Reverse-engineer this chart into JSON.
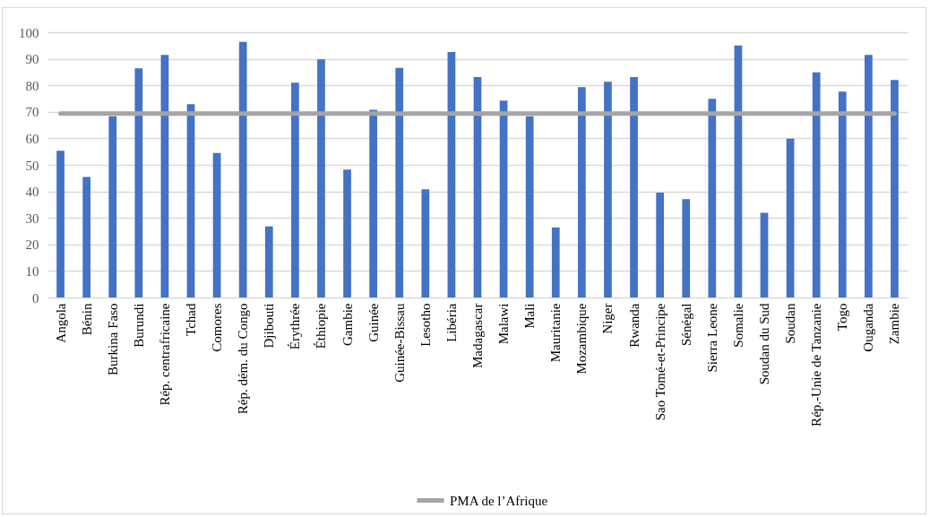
{
  "chart_data": {
    "type": "bar",
    "categories": [
      "Angola",
      "Bénin",
      "Burkina Faso",
      "Burundi",
      "Rép. centrafricaine",
      "Tchad",
      "Comores",
      "Rép. dém. du Congo",
      "Djibouti",
      "Érythrée",
      "Éthiopie",
      "Gambie",
      "Guinée",
      "Guinée-Bissau",
      "Lesotho",
      "Libéria",
      "Madagascar",
      "Malawi",
      "Mali",
      "Mauritanie",
      "Mozambique",
      "Niger",
      "Rwanda",
      "Sao Tomé-et-Principe",
      "Sénégal",
      "Sierra Leone",
      "Somalie",
      "Soudan du Sud",
      "Soudan",
      "Rép.-Unie de Tanzanie",
      "Togo",
      "Ouganda",
      "Zambie"
    ],
    "series": [
      {
        "color": "#4472c4",
        "values": [
          55.3,
          45.4,
          68.3,
          86.4,
          91.5,
          72.9,
          54.5,
          96.4,
          26.8,
          81.0,
          89.8,
          48.2,
          70.8,
          86.6,
          40.8,
          92.6,
          83.1,
          74.2,
          68.3,
          26.4,
          79.3,
          81.3,
          83.1,
          39.5,
          37.1,
          74.9,
          95.0,
          31.9,
          59.9,
          84.9,
          77.6,
          91.5,
          82.0
        ]
      },
      {
        "type": "line",
        "name": "PMA de l’Afrique",
        "color": "#a5a5a5",
        "values": [
          69.3,
          69.3,
          69.3,
          69.3,
          69.3,
          69.3,
          69.3,
          69.3,
          69.3,
          69.3,
          69.3,
          69.3,
          69.3,
          69.3,
          69.3,
          69.3,
          69.3,
          69.3,
          69.3,
          69.3,
          69.3,
          69.3,
          69.3,
          69.3,
          69.3,
          69.3,
          69.3,
          69.3,
          69.3,
          69.3,
          69.3,
          69.3,
          69.3
        ]
      }
    ],
    "ylim": [
      0,
      100
    ],
    "yticks": [
      0,
      10,
      20,
      30,
      40,
      50,
      60,
      70,
      80,
      90,
      100
    ],
    "grid": "y",
    "legend": "bottom"
  }
}
